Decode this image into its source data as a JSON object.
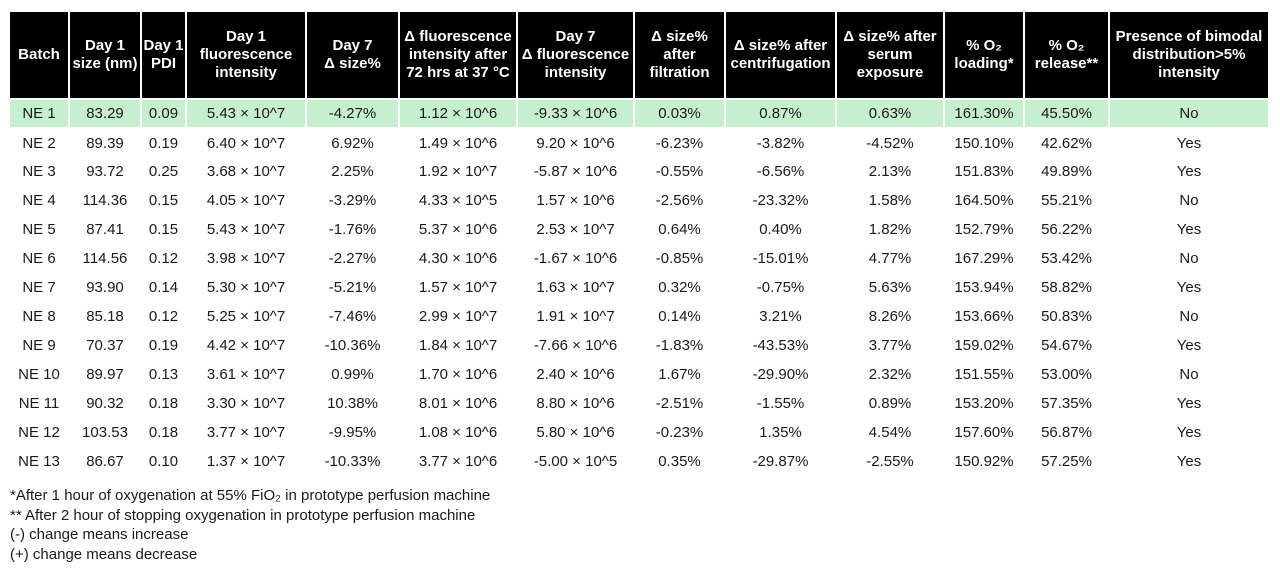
{
  "table": {
    "header_bg": "#000000",
    "header_text_color": "#ffffff",
    "highlight_row_color": "#c6efce",
    "headers": [
      "Batch",
      "Day 1\nsize (nm)",
      "Day 1\nPDI",
      "Day 1\nfluorescence\nintensity",
      "Day 7\nΔ size%",
      "Δ fluorescence\nintensity after\n72 hrs at 37 °C",
      "Day 7\nΔ fluorescence\nintensity",
      "Δ size%\nafter\nfiltration",
      "Δ size% after\ncentrifugation",
      "Δ size% after\nserum\nexposure",
      "% O₂\nloading*",
      "% O₂\nrelease**",
      "Presence of bimodal\ndistribution>5%\nintensity"
    ],
    "rows": [
      {
        "highlighted": true,
        "cells": [
          "NE 1",
          "83.29",
          "0.09",
          "5.43 × 10^7",
          "-4.27%",
          "1.12 × 10^6",
          "-9.33 × 10^6",
          "0.03%",
          "0.87%",
          "0.63%",
          "161.30%",
          "45.50%",
          "No"
        ]
      },
      {
        "highlighted": false,
        "cells": [
          "NE 2",
          "89.39",
          "0.19",
          "6.40 × 10^7",
          "6.92%",
          "1.49 × 10^6",
          "9.20 × 10^6",
          "-6.23%",
          "-3.82%",
          "-4.52%",
          "150.10%",
          "42.62%",
          "Yes"
        ]
      },
      {
        "highlighted": false,
        "cells": [
          "NE 3",
          "93.72",
          "0.25",
          "3.68 × 10^7",
          "2.25%",
          "1.92 × 10^7",
          "-5.87 × 10^6",
          "-0.55%",
          "-6.56%",
          "2.13%",
          "151.83%",
          "49.89%",
          "Yes"
        ]
      },
      {
        "highlighted": false,
        "cells": [
          "NE 4",
          "114.36",
          "0.15",
          "4.05 × 10^7",
          "-3.29%",
          "4.33 × 10^5",
          "1.57 × 10^6",
          "-2.56%",
          "-23.32%",
          "1.58%",
          "164.50%",
          "55.21%",
          "No"
        ]
      },
      {
        "highlighted": false,
        "cells": [
          "NE 5",
          "87.41",
          "0.15",
          "5.43 × 10^7",
          "-1.76%",
          "5.37 × 10^6",
          "2.53 × 10^7",
          "0.64%",
          "0.40%",
          "1.82%",
          "152.79%",
          "56.22%",
          "Yes"
        ]
      },
      {
        "highlighted": false,
        "cells": [
          "NE 6",
          "114.56",
          "0.12",
          "3.98 × 10^7",
          "-2.27%",
          "4.30 × 10^6",
          "-1.67 × 10^6",
          "-0.85%",
          "-15.01%",
          "4.77%",
          "167.29%",
          "53.42%",
          "No"
        ]
      },
      {
        "highlighted": false,
        "cells": [
          "NE 7",
          "93.90",
          "0.14",
          "5.30 × 10^7",
          "-5.21%",
          "1.57 × 10^7",
          "1.63 × 10^7",
          "0.32%",
          "-0.75%",
          "5.63%",
          "153.94%",
          "58.82%",
          "Yes"
        ]
      },
      {
        "highlighted": false,
        "cells": [
          "NE 8",
          "85.18",
          "0.12",
          "5.25 × 10^7",
          "-7.46%",
          "2.99 × 10^7",
          "1.91 × 10^7",
          "0.14%",
          "3.21%",
          "8.26%",
          "153.66%",
          "50.83%",
          "No"
        ]
      },
      {
        "highlighted": false,
        "cells": [
          "NE 9",
          "70.37",
          "0.19",
          "4.42 × 10^7",
          "-10.36%",
          "1.84 × 10^7",
          "-7.66 × 10^6",
          "-1.83%",
          "-43.53%",
          "3.77%",
          "159.02%",
          "54.67%",
          "Yes"
        ]
      },
      {
        "highlighted": false,
        "cells": [
          "NE 10",
          "89.97",
          "0.13",
          "3.61 × 10^7",
          "0.99%",
          "1.70 × 10^6",
          "2.40 × 10^6",
          "1.67%",
          "-29.90%",
          "2.32%",
          "151.55%",
          "53.00%",
          "No"
        ]
      },
      {
        "highlighted": false,
        "cells": [
          "NE 11",
          "90.32",
          "0.18",
          "3.30 × 10^7",
          "10.38%",
          "8.01 × 10^6",
          "8.80 × 10^6",
          "-2.51%",
          "-1.55%",
          "0.89%",
          "153.20%",
          "57.35%",
          "Yes"
        ]
      },
      {
        "highlighted": false,
        "cells": [
          "NE 12",
          "103.53",
          "0.18",
          "3.77 × 10^7",
          "-9.95%",
          "1.08 × 10^6",
          "5.80 × 10^6",
          "-0.23%",
          "1.35%",
          "4.54%",
          "157.60%",
          "56.87%",
          "Yes"
        ]
      },
      {
        "highlighted": false,
        "cells": [
          "NE 13",
          "86.67",
          "0.10",
          "1.37 × 10^7",
          "-10.33%",
          "3.77 × 10^6",
          "-5.00 × 10^5",
          "0.35%",
          "-29.87%",
          "-2.55%",
          "150.92%",
          "57.25%",
          "Yes"
        ]
      }
    ]
  },
  "footnotes": [
    "*After 1 hour of oxygenation at 55% FiO₂ in prototype perfusion machine",
    "** After 2 hour of stopping oxygenation in prototype perfusion machine",
    "(-) change means increase",
    "(+) change means decrease"
  ]
}
